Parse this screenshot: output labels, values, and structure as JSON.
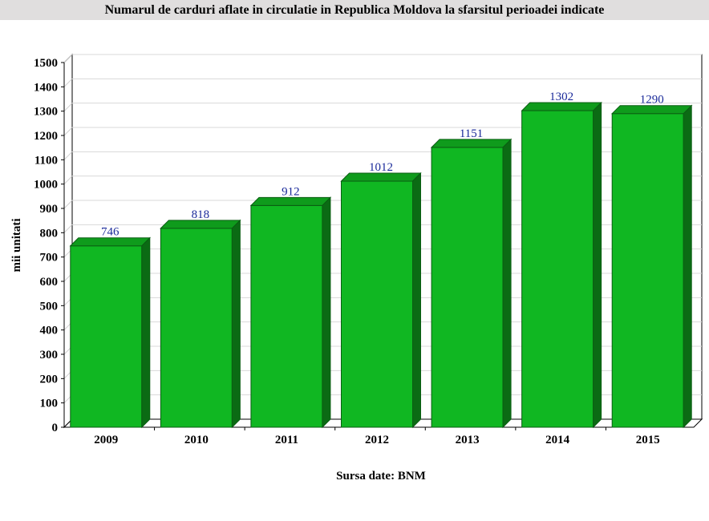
{
  "title": "Numarul de carduri aflate in circulatie in Republica Moldova la sfarsitul perioadei indicate",
  "source": "Sursa date: BNM",
  "colors": {
    "bar_front": "#10b722",
    "bar_top": "#0f9b1c",
    "bar_side": "#0b6b14",
    "value_label": "#1a2a9a",
    "title_bg": "#e0dede"
  },
  "chart_data": {
    "type": "bar",
    "title": "Numarul de carduri aflate in circulatie in Republica Moldova la sfarsitul perioadei indicate",
    "xlabel": "",
    "ylabel": "mii unitati",
    "categories": [
      "2009",
      "2010",
      "2011",
      "2012",
      "2013",
      "2014",
      "2015"
    ],
    "values": [
      746,
      818,
      912,
      1012,
      1151,
      1302,
      1290
    ],
    "data_labels": [
      "746",
      "818",
      "912",
      "1012",
      "1151",
      "1302",
      "1290"
    ],
    "ylim": [
      0,
      1500
    ],
    "yticks": [
      0,
      100,
      200,
      300,
      400,
      500,
      600,
      700,
      800,
      900,
      1000,
      1100,
      1200,
      1300,
      1400,
      1500
    ],
    "grid": true,
    "legend": "none",
    "style": "3d"
  }
}
